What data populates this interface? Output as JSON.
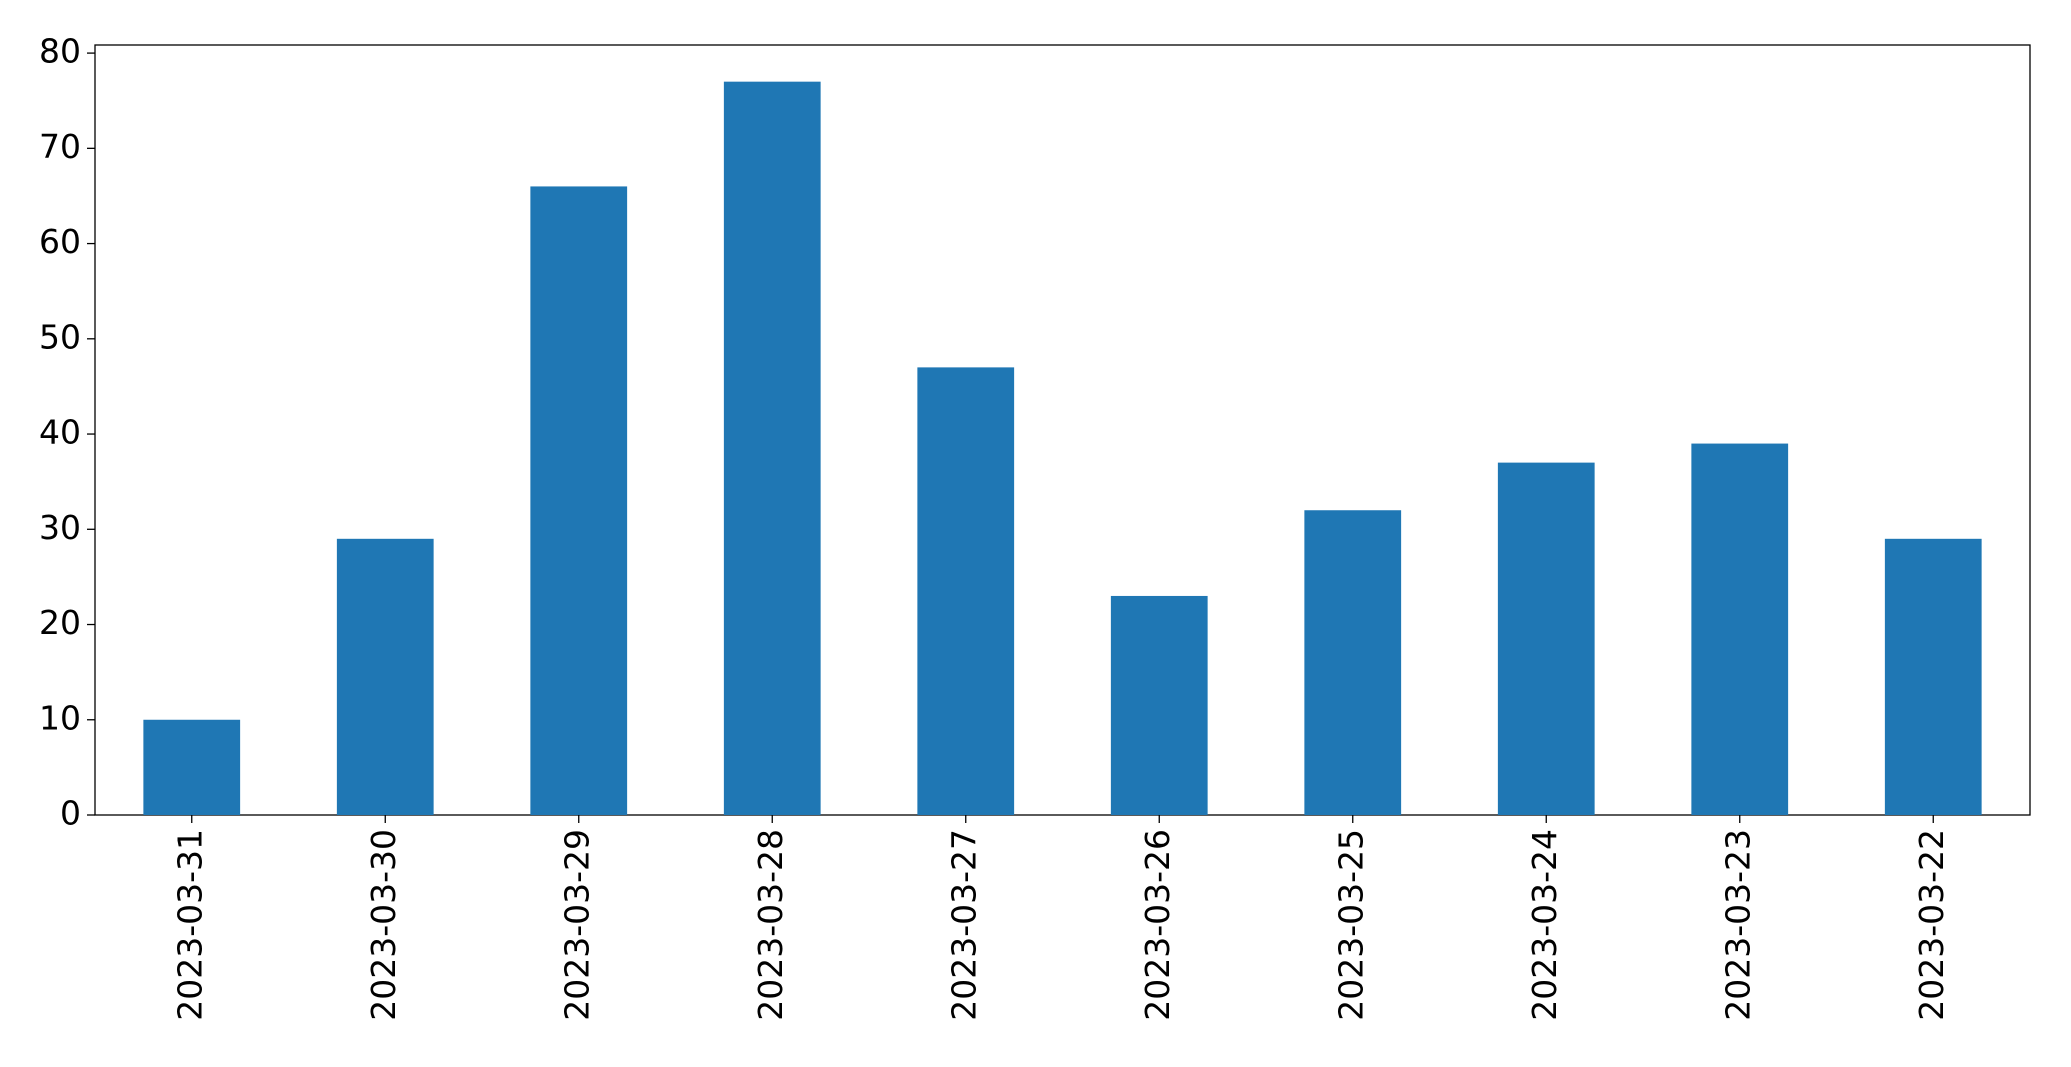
{
  "chart_data": {
    "type": "bar",
    "categories": [
      "2023-03-31",
      "2023-03-30",
      "2023-03-29",
      "2023-03-28",
      "2023-03-27",
      "2023-03-26",
      "2023-03-25",
      "2023-03-24",
      "2023-03-23",
      "2023-03-22"
    ],
    "values": [
      10,
      29,
      66,
      77,
      47,
      23,
      32,
      37,
      39,
      29
    ],
    "color": "#1f77b4",
    "ylim": [
      0,
      80.85
    ],
    "yticks": [
      0,
      10,
      20,
      30,
      40,
      50,
      60,
      70,
      80
    ],
    "grid": false
  }
}
